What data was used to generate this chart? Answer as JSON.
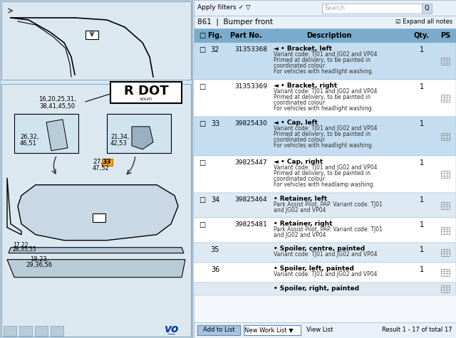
{
  "title": "861 | Bumper front",
  "header_text": "Apply filters",
  "expand_text": "Expand all notes",
  "search_placeholder": "Search",
  "result_text": "Result 1 - 17 of total 17",
  "columns": [
    "",
    "Fig.",
    "Part No.",
    "Description",
    "Qty.",
    "PS"
  ],
  "rows": [
    {
      "fig": "32",
      "part": "31353368",
      "desc_title": "◄ • Bracket, left",
      "desc": "Variant code: TJ01 and JG02 and VP04\nPrimed at delivery, to be painted in\ncoordinated colour.\nFor vehicles with headlight washing.",
      "qty": "1",
      "highlight": true,
      "checkbox": true
    },
    {
      "fig": "",
      "part": "31353369",
      "desc_title": "◄ • Bracket, right",
      "desc": "Variant code: TJ01 and JG02 and VP04\nPrimed at delivery, to be painted in\ncoordinated colour.\nFor vehicles with headlight washing.",
      "qty": "1",
      "highlight": false,
      "checkbox": true
    },
    {
      "fig": "33",
      "part": "39825430",
      "desc_title": "◄ • Cap, left",
      "desc": "Variant code: TJ01 and JG02 and VP04\nPrimed at delivery, to be painted in\ncoordinated colour.\nFor vehicles with headlight washing.",
      "qty": "1",
      "highlight": true,
      "checkbox": true
    },
    {
      "fig": "",
      "part": "39825447",
      "desc_title": "◄ • Cap, right",
      "desc": "Variant code: TJ01 and JG02 and VP04\nPrimed at delivery, to be painted in\ncoordinated colour.\nFor vehicles with headlamp washing.",
      "qty": "1",
      "highlight": false,
      "checkbox": true
    },
    {
      "fig": "34",
      "part": "39825464",
      "desc_title": "• Retainer, left",
      "desc": "Park Assist Pilot, PAP. Variant code: TJ01\nand JG02 and VP04",
      "qty": "1",
      "highlight": false,
      "checkbox": true
    },
    {
      "fig": "",
      "part": "39825481",
      "desc_title": "• Retainer, right",
      "desc": "Park Assist Pilot, PAP. Variant code: TJ01\nand JG02 and VP04",
      "qty": "1",
      "highlight": false,
      "checkbox": true
    },
    {
      "fig": "35",
      "part": "",
      "desc_title": "• Spoiler, centre, painted",
      "desc": "Variant code: TJ01 and JG02 and VP04",
      "qty": "1",
      "highlight": false,
      "checkbox": false
    },
    {
      "fig": "36",
      "part": "",
      "desc_title": "• Spoiler, left, painted",
      "desc": "Variant code: TJ01 and JG02 and VP04",
      "qty": "1",
      "highlight": false,
      "checkbox": false
    },
    {
      "fig": "",
      "part": "",
      "desc_title": "• Spoiler, right, painted",
      "desc": "",
      "qty": "",
      "highlight": false,
      "checkbox": false
    }
  ],
  "bg_color": "#f0f4f8",
  "panel_bg": "#ffffff",
  "header_bg": "#ccdce8",
  "row_alt_bg": "#ddeaf4",
  "row_normal_bg": "#ffffff",
  "highlight_row_bg": "#c5ddf0",
  "border_color": "#a0b8cc",
  "text_color": "#000000",
  "col_header_bg": "#7aabcc",
  "toolbar_bg": "#e8f0f8",
  "left_panel_bg": "#d8e8f4",
  "diagram_bg": "#e8f0f8",
  "volvo_logo_color": "#003399",
  "button_bg": "#d0e4f4",
  "button_border": "#88aacc"
}
